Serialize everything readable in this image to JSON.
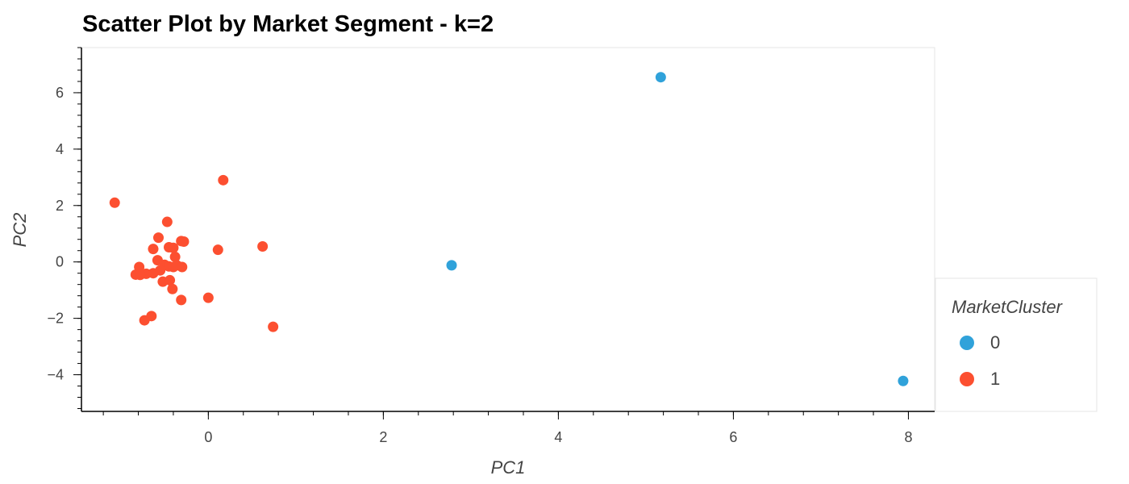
{
  "chart_data": {
    "type": "scatter",
    "title": "Scatter Plot by Market Segment - k=2",
    "xlabel": "PC1",
    "ylabel": "PC2",
    "xlim": [
      -1.45,
      8.3
    ],
    "ylim": [
      -5.3,
      7.6
    ],
    "xticks": [
      0,
      2,
      4,
      6,
      8
    ],
    "xtick_labels": [
      "0",
      "2",
      "4",
      "6",
      "8"
    ],
    "yticks": [
      -4,
      -2,
      0,
      2,
      4,
      6
    ],
    "ytick_labels": [
      "−4",
      "−2",
      "0",
      "2",
      "4",
      "6"
    ],
    "grid": false,
    "legend": {
      "title": "MarketCluster",
      "placement": "right",
      "entries": [
        "0",
        "1"
      ]
    },
    "series": [
      {
        "name": "0",
        "color": "#30a2da",
        "points": [
          [
            5.17,
            6.55
          ],
          [
            2.78,
            -0.12
          ],
          [
            7.94,
            -4.22
          ]
        ]
      },
      {
        "name": "1",
        "color": "#fc4f30",
        "points": [
          [
            -1.07,
            2.1
          ],
          [
            0.17,
            2.9
          ],
          [
            -0.47,
            1.42
          ],
          [
            -0.57,
            0.86
          ],
          [
            -0.63,
            0.46
          ],
          [
            -0.45,
            0.52
          ],
          [
            -0.4,
            0.5
          ],
          [
            -0.31,
            0.74
          ],
          [
            -0.28,
            0.72
          ],
          [
            0.11,
            0.43
          ],
          [
            0.62,
            0.55
          ],
          [
            -0.38,
            0.18
          ],
          [
            -0.58,
            0.06
          ],
          [
            -0.79,
            -0.18
          ],
          [
            -0.5,
            -0.1
          ],
          [
            -0.45,
            -0.16
          ],
          [
            -0.4,
            -0.18
          ],
          [
            -0.36,
            -0.12
          ],
          [
            -0.3,
            -0.18
          ],
          [
            -0.55,
            -0.3
          ],
          [
            -0.63,
            -0.4
          ],
          [
            -0.71,
            -0.42
          ],
          [
            -0.83,
            -0.45
          ],
          [
            -0.78,
            -0.46
          ],
          [
            -0.52,
            -0.7
          ],
          [
            -0.44,
            -0.65
          ],
          [
            -0.41,
            -0.96
          ],
          [
            -0.31,
            -1.35
          ],
          [
            0.0,
            -1.27
          ],
          [
            -0.65,
            -1.92
          ],
          [
            -0.73,
            -2.07
          ],
          [
            0.74,
            -2.3
          ]
        ]
      }
    ]
  }
}
